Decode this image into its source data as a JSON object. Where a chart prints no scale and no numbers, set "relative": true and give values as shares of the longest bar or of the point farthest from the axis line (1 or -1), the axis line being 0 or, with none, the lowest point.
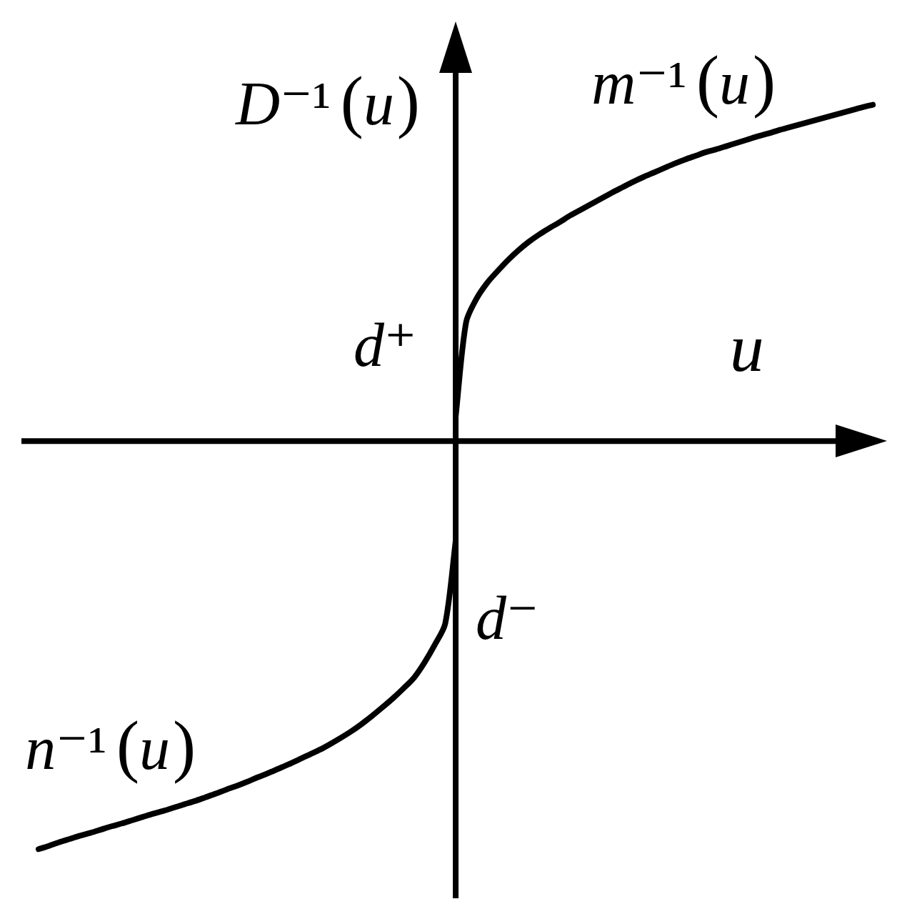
{
  "chart_data": {
    "type": "line",
    "relative": true,
    "xlabel": "u",
    "ylabel": "D⁻¹(u)",
    "categories": [
      null,
      null,
      null,
      null,
      null,
      null,
      null,
      null,
      null,
      null,
      null,
      null,
      null,
      null,
      null,
      null,
      null,
      null,
      null,
      null,
      null,
      null,
      null,
      null,
      null,
      null,
      null,
      null,
      null,
      null,
      null,
      null,
      null,
      null,
      null,
      null,
      null,
      null,
      null,
      null,
      null,
      null,
      null,
      null,
      null,
      null,
      null,
      null,
      null,
      null,
      null,
      null,
      null,
      null,
      null,
      null,
      null,
      null,
      null,
      null,
      null,
      null,
      null,
      null,
      null,
      null,
      null,
      null,
      null,
      null,
      null,
      null,
      null,
      null,
      null,
      null,
      null,
      null,
      null,
      null,
      null
    ],
    "series": [
      {
        "name": "m⁻¹(u)",
        "color": "#000000",
        "values": [
          null,
          null,
          null,
          null,
          null,
          null,
          null,
          null,
          null,
          null,
          null,
          null,
          null,
          null,
          null,
          null,
          null,
          null,
          null,
          null,
          null,
          null,
          null,
          null,
          null,
          null,
          null,
          null,
          null,
          null,
          null,
          null,
          null,
          null,
          null,
          null,
          null,
          null,
          null,
          null,
          0.06,
          0.291,
          0.349,
          0.387,
          0.416,
          0.443,
          0.467,
          0.488,
          0.506,
          0.522,
          0.537,
          0.553,
          0.567,
          0.581,
          0.595,
          0.609,
          0.622,
          0.635,
          0.647,
          0.658,
          0.669,
          0.68,
          0.69,
          0.699,
          0.708,
          0.715,
          0.723,
          0.731,
          0.739,
          0.747,
          0.754,
          0.762,
          0.769,
          0.776,
          0.783,
          0.79,
          0.797,
          0.804,
          0.811,
          0.818,
          0.824
        ]
      },
      {
        "name": "n⁻¹(u)",
        "color": "#000000",
        "values": [
          -1.0,
          -0.992,
          -0.983,
          -0.975,
          -0.967,
          -0.96,
          -0.952,
          -0.944,
          -0.937,
          -0.929,
          -0.921,
          -0.913,
          -0.906,
          -0.898,
          -0.89,
          -0.882,
          -0.873,
          -0.864,
          -0.854,
          -0.845,
          -0.835,
          -0.824,
          -0.814,
          -0.803,
          -0.792,
          -0.78,
          -0.768,
          -0.756,
          -0.742,
          -0.727,
          -0.711,
          -0.693,
          -0.673,
          -0.652,
          -0.63,
          -0.606,
          -0.58,
          -0.543,
          -0.499,
          -0.447,
          -0.245,
          null,
          null,
          null,
          null,
          null,
          null,
          null,
          null,
          null,
          null,
          null,
          null,
          null,
          null,
          null,
          null,
          null,
          null,
          null,
          null,
          null,
          null,
          null,
          null,
          null,
          null,
          null,
          null,
          null,
          null,
          null,
          null,
          null,
          null,
          null,
          null,
          null,
          null,
          null,
          null
        ]
      }
    ],
    "annotations": [
      "d⁺",
      "d⁻"
    ]
  }
}
